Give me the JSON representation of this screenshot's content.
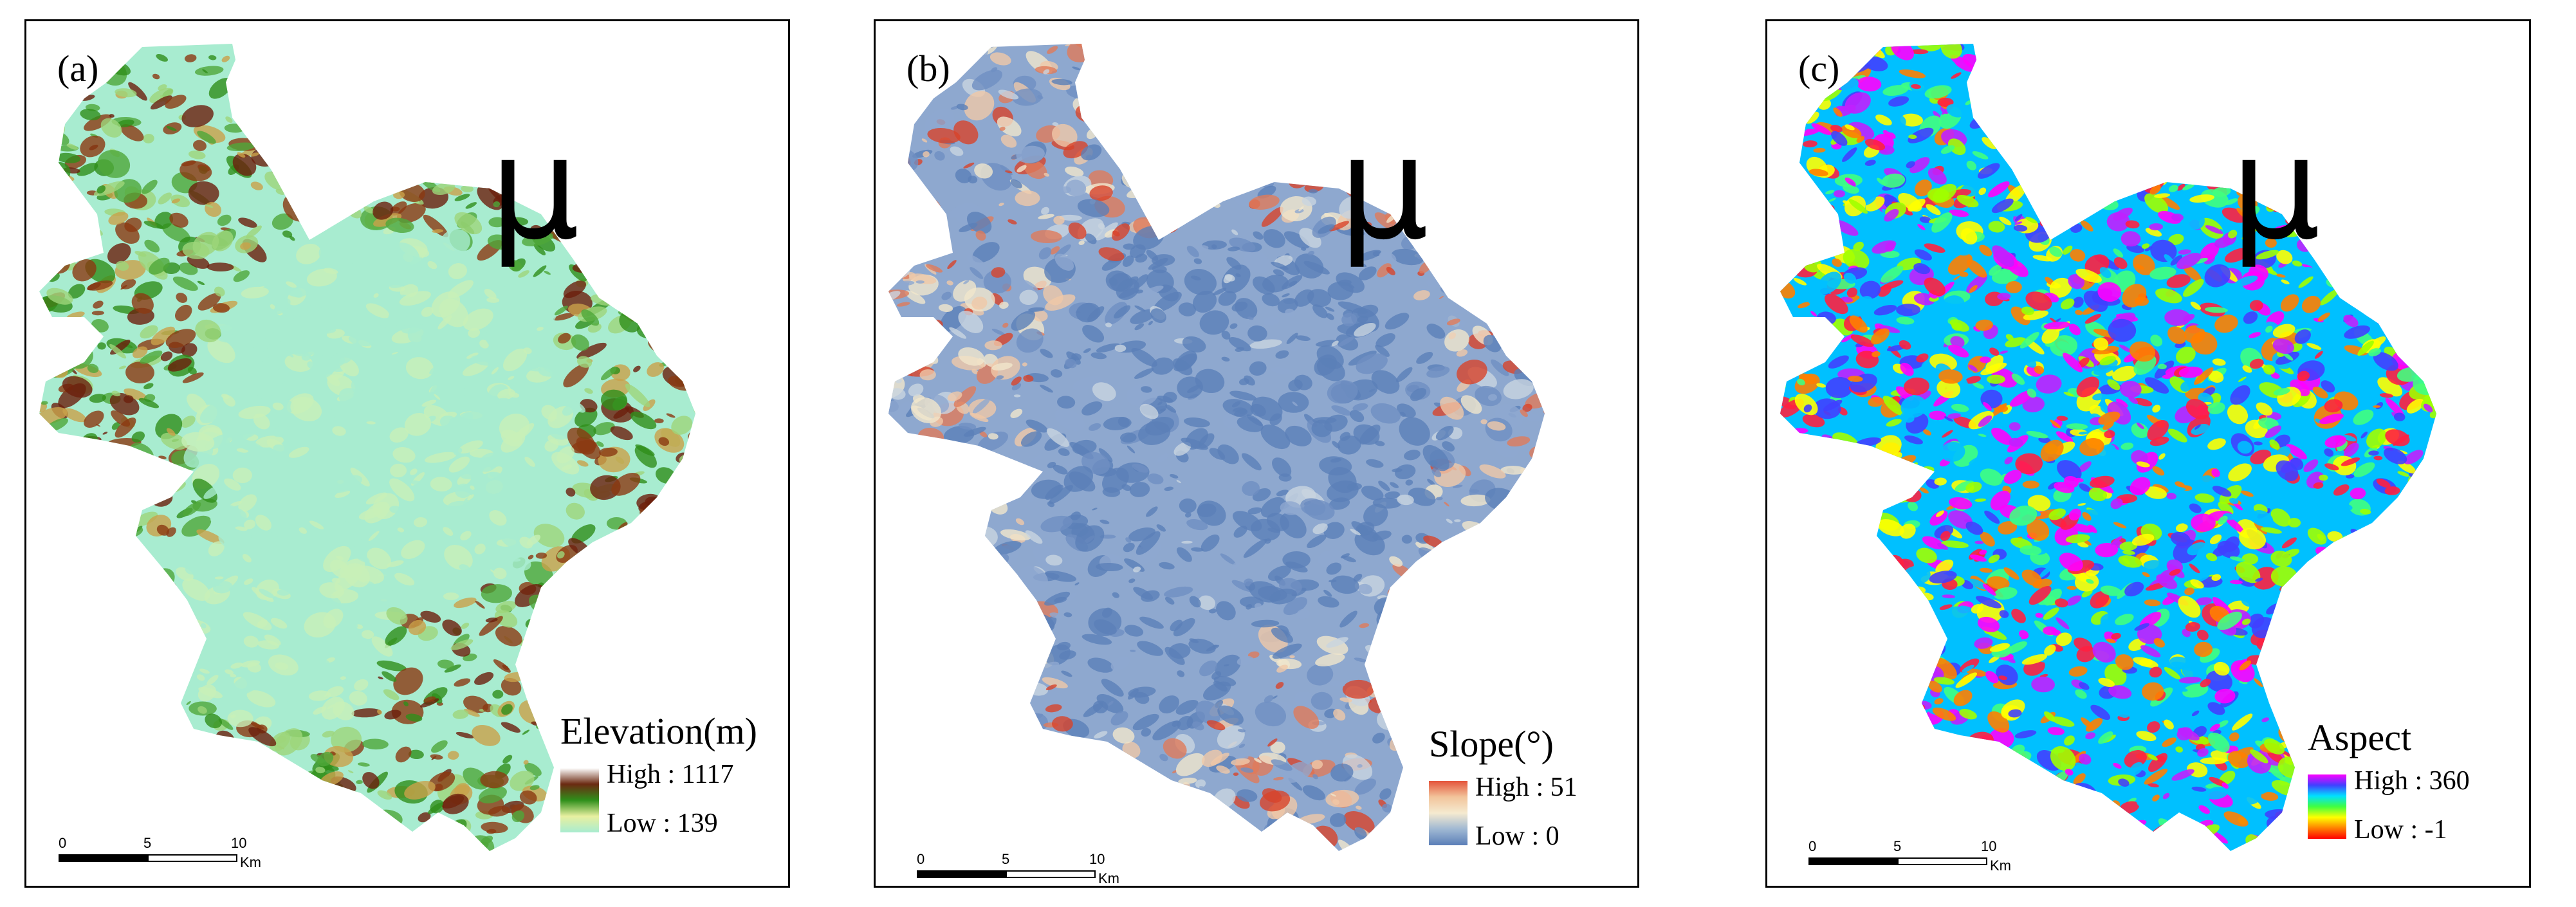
{
  "panels": [
    {
      "label": "(a)",
      "north_symbol": "μ",
      "legend": {
        "title": "Elevation(m)",
        "high": "High : 1117",
        "low": "Low : 139",
        "ramp": [
          "#ffffff",
          "#6b2a12",
          "#2f8f1a",
          "#e8f0a0",
          "#a8ecd0"
        ]
      },
      "scale": {
        "ticks": [
          "0",
          "5",
          "10"
        ],
        "unit": "Km"
      },
      "palette": [
        "#a8ecd0",
        "#c8f0b8",
        "#9ed67a",
        "#4fa83a",
        "#2f8f1a",
        "#c9a14a",
        "#8b3a12",
        "#6b1f0d"
      ]
    },
    {
      "label": "(b)",
      "north_symbol": "μ",
      "legend": {
        "title": "Slope(°)",
        "high": "High : 51",
        "low": "Low : 0",
        "ramp": [
          "#e4533a",
          "#f2c49b",
          "#f5ead0",
          "#9fb8d3",
          "#5b7fb8"
        ]
      },
      "scale": {
        "ticks": [
          "0",
          "5",
          "10"
        ],
        "unit": "Km"
      },
      "palette": [
        "#5b7fb8",
        "#6f8fc2",
        "#8ea8cf",
        "#c9d4e0",
        "#f1e6cc",
        "#f0c8a8",
        "#e07a5a",
        "#d8442a"
      ]
    },
    {
      "label": "(c)",
      "north_symbol": "μ",
      "legend": {
        "title": "Aspect",
        "high": "High : 360",
        "low": "Low : -1",
        "ramp": [
          "#ff00ff",
          "#4040ff",
          "#00e0ff",
          "#40ff40",
          "#ffff00",
          "#ff8000",
          "#ff0000"
        ]
      },
      "scale": {
        "ticks": [
          "0",
          "5",
          "10"
        ],
        "unit": "Km"
      },
      "palette": [
        "#ff00ff",
        "#c020ff",
        "#4040ff",
        "#00c0ff",
        "#40ff80",
        "#a0ff00",
        "#ffff00",
        "#ff8000",
        "#ff2040"
      ]
    }
  ]
}
